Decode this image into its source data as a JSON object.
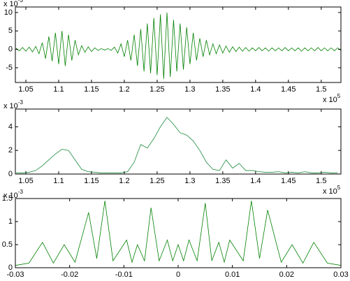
{
  "chart_data": [
    {
      "type": "line",
      "color": "#008000",
      "y_multiplier": {
        "base": "x 10",
        "exponent": "-3"
      },
      "x_multiplier": {
        "base": "x 10",
        "exponent": "5"
      },
      "xlim": [
        1.034,
        1.53
      ],
      "ylim": [
        -9,
        11.5
      ],
      "xticks": [
        1.05,
        1.1,
        1.15,
        1.2,
        1.25,
        1.3,
        1.35,
        1.4,
        1.45,
        1.5
      ],
      "yticks": [
        -5,
        0,
        5,
        10
      ],
      "x": [
        1.035,
        1.04,
        1.045,
        1.05,
        1.055,
        1.06,
        1.065,
        1.07,
        1.075,
        1.08,
        1.085,
        1.09,
        1.095,
        1.1,
        1.105,
        1.11,
        1.115,
        1.12,
        1.125,
        1.13,
        1.135,
        1.14,
        1.145,
        1.15,
        1.155,
        1.16,
        1.165,
        1.17,
        1.175,
        1.18,
        1.185,
        1.19,
        1.195,
        1.2,
        1.205,
        1.21,
        1.215,
        1.22,
        1.225,
        1.23,
        1.235,
        1.24,
        1.245,
        1.25,
        1.255,
        1.26,
        1.265,
        1.27,
        1.275,
        1.28,
        1.285,
        1.29,
        1.295,
        1.3,
        1.305,
        1.31,
        1.315,
        1.32,
        1.325,
        1.33,
        1.335,
        1.34,
        1.345,
        1.35,
        1.355,
        1.36,
        1.365,
        1.37,
        1.375,
        1.38,
        1.385,
        1.39,
        1.395,
        1.4,
        1.405,
        1.41,
        1.415,
        1.42,
        1.425,
        1.43,
        1.435,
        1.44,
        1.445,
        1.45,
        1.455,
        1.46,
        1.465,
        1.47,
        1.475,
        1.48,
        1.485,
        1.49,
        1.495,
        1.5,
        1.505,
        1.51,
        1.515,
        1.52,
        1.525,
        1.53
      ],
      "values": [
        0.3,
        -0.4,
        0.5,
        -0.5,
        0.6,
        -0.7,
        0.8,
        -1.2,
        1.8,
        -2.5,
        3.5,
        -3.2,
        4.5,
        -4,
        5,
        -4.5,
        4,
        -3,
        2.5,
        -1.5,
        1,
        -0.8,
        0.7,
        -0.6,
        0.4,
        -0.3,
        0.2,
        -0.2,
        0.2,
        -0.3,
        0.6,
        -1,
        1.5,
        -2,
        2.5,
        -3,
        4,
        -4.5,
        5.5,
        -6,
        7,
        -6.5,
        8.5,
        -7,
        9.5,
        -8,
        10,
        -7.5,
        8,
        -6,
        7,
        -5.5,
        6,
        -4,
        4.5,
        -3,
        3,
        -2,
        2.5,
        -1.5,
        1.5,
        -1.2,
        1.2,
        -1,
        0.9,
        -0.8,
        0.7,
        -0.6,
        0.6,
        -0.5,
        0.5,
        -0.5,
        0.4,
        -0.4,
        0.5,
        -0.4,
        0.4,
        -0.5,
        0.4,
        -0.4,
        0.4,
        -0.4,
        0.5,
        -0.4,
        0.4,
        -0.4,
        0.4,
        -0.5,
        0.4,
        -0.4,
        0.4,
        -0.4,
        0.5,
        -0.4,
        0.4,
        -0.4,
        0.4,
        -0.4,
        0.4,
        -0.3
      ]
    },
    {
      "type": "line",
      "color": "#1a8a3a",
      "y_multiplier": {
        "base": "x 10",
        "exponent": "-3"
      },
      "x_multiplier": {
        "base": "x 10",
        "exponent": "5"
      },
      "xlim": [
        1.034,
        1.53
      ],
      "ylim": [
        0,
        5.5
      ],
      "xticks": [
        1.05,
        1.1,
        1.15,
        1.2,
        1.25,
        1.3,
        1.35,
        1.4,
        1.45,
        1.5
      ],
      "yticks": [
        0,
        2,
        4
      ],
      "x": [
        1.035,
        1.045,
        1.055,
        1.065,
        1.075,
        1.085,
        1.095,
        1.105,
        1.115,
        1.125,
        1.135,
        1.145,
        1.155,
        1.165,
        1.175,
        1.185,
        1.195,
        1.205,
        1.215,
        1.225,
        1.235,
        1.245,
        1.255,
        1.265,
        1.275,
        1.285,
        1.295,
        1.305,
        1.315,
        1.325,
        1.335,
        1.345,
        1.355,
        1.365,
        1.375,
        1.385,
        1.395,
        1.405,
        1.415,
        1.425,
        1.435,
        1.445,
        1.455,
        1.465,
        1.475,
        1.485,
        1.495,
        1.505,
        1.515,
        1.525
      ],
      "values": [
        0.1,
        0.1,
        0.15,
        0.3,
        0.7,
        1.2,
        1.7,
        2.1,
        2.0,
        1.2,
        0.4,
        0.2,
        0.15,
        0.1,
        0.1,
        0.1,
        0.1,
        0.2,
        1.0,
        2.5,
        2.2,
        3.0,
        4.0,
        4.8,
        4.2,
        3.5,
        3.3,
        2.8,
        2.0,
        1.0,
        0.4,
        0.3,
        1.2,
        0.5,
        0.9,
        0.3,
        0.3,
        0.2,
        0.15,
        0.15,
        0.2,
        0.1,
        0.15,
        0.1,
        0.2,
        0.1,
        0.1,
        0.15,
        0.1,
        0.1
      ]
    },
    {
      "type": "line",
      "color": "#008000",
      "y_multiplier": {
        "base": "x 10",
        "exponent": "-3"
      },
      "xlim": [
        -0.03,
        0.03
      ],
      "ylim": [
        0,
        1.5
      ],
      "xticks": [
        -0.03,
        -0.02,
        -0.01,
        0,
        0.01,
        0.02,
        0.03
      ],
      "yticks": [
        0,
        0.5,
        1,
        1.5
      ],
      "x": [
        -0.03,
        -0.0275,
        -0.025,
        -0.023,
        -0.021,
        -0.019,
        -0.0165,
        -0.015,
        -0.0135,
        -0.012,
        -0.0095,
        -0.0085,
        -0.0075,
        -0.0062,
        -0.005,
        -0.0035,
        -0.002,
        -0.001,
        0,
        0.001,
        0.002,
        0.0035,
        0.005,
        0.0062,
        0.0075,
        0.0085,
        0.0095,
        0.012,
        0.0135,
        0.015,
        0.0165,
        0.019,
        0.021,
        0.023,
        0.025,
        0.0275,
        0.03
      ],
      "values": [
        0.05,
        0.1,
        0.55,
        0.1,
        0.5,
        0.12,
        1.2,
        0.2,
        1.45,
        0.15,
        0.6,
        0.12,
        0.5,
        0.15,
        1.3,
        0.15,
        0.6,
        0.15,
        0.5,
        0.15,
        0.6,
        0.15,
        1.4,
        0.15,
        0.55,
        0.12,
        0.6,
        0.15,
        1.45,
        0.2,
        1.25,
        0.12,
        0.5,
        0.1,
        0.55,
        0.1,
        0.05
      ]
    }
  ]
}
